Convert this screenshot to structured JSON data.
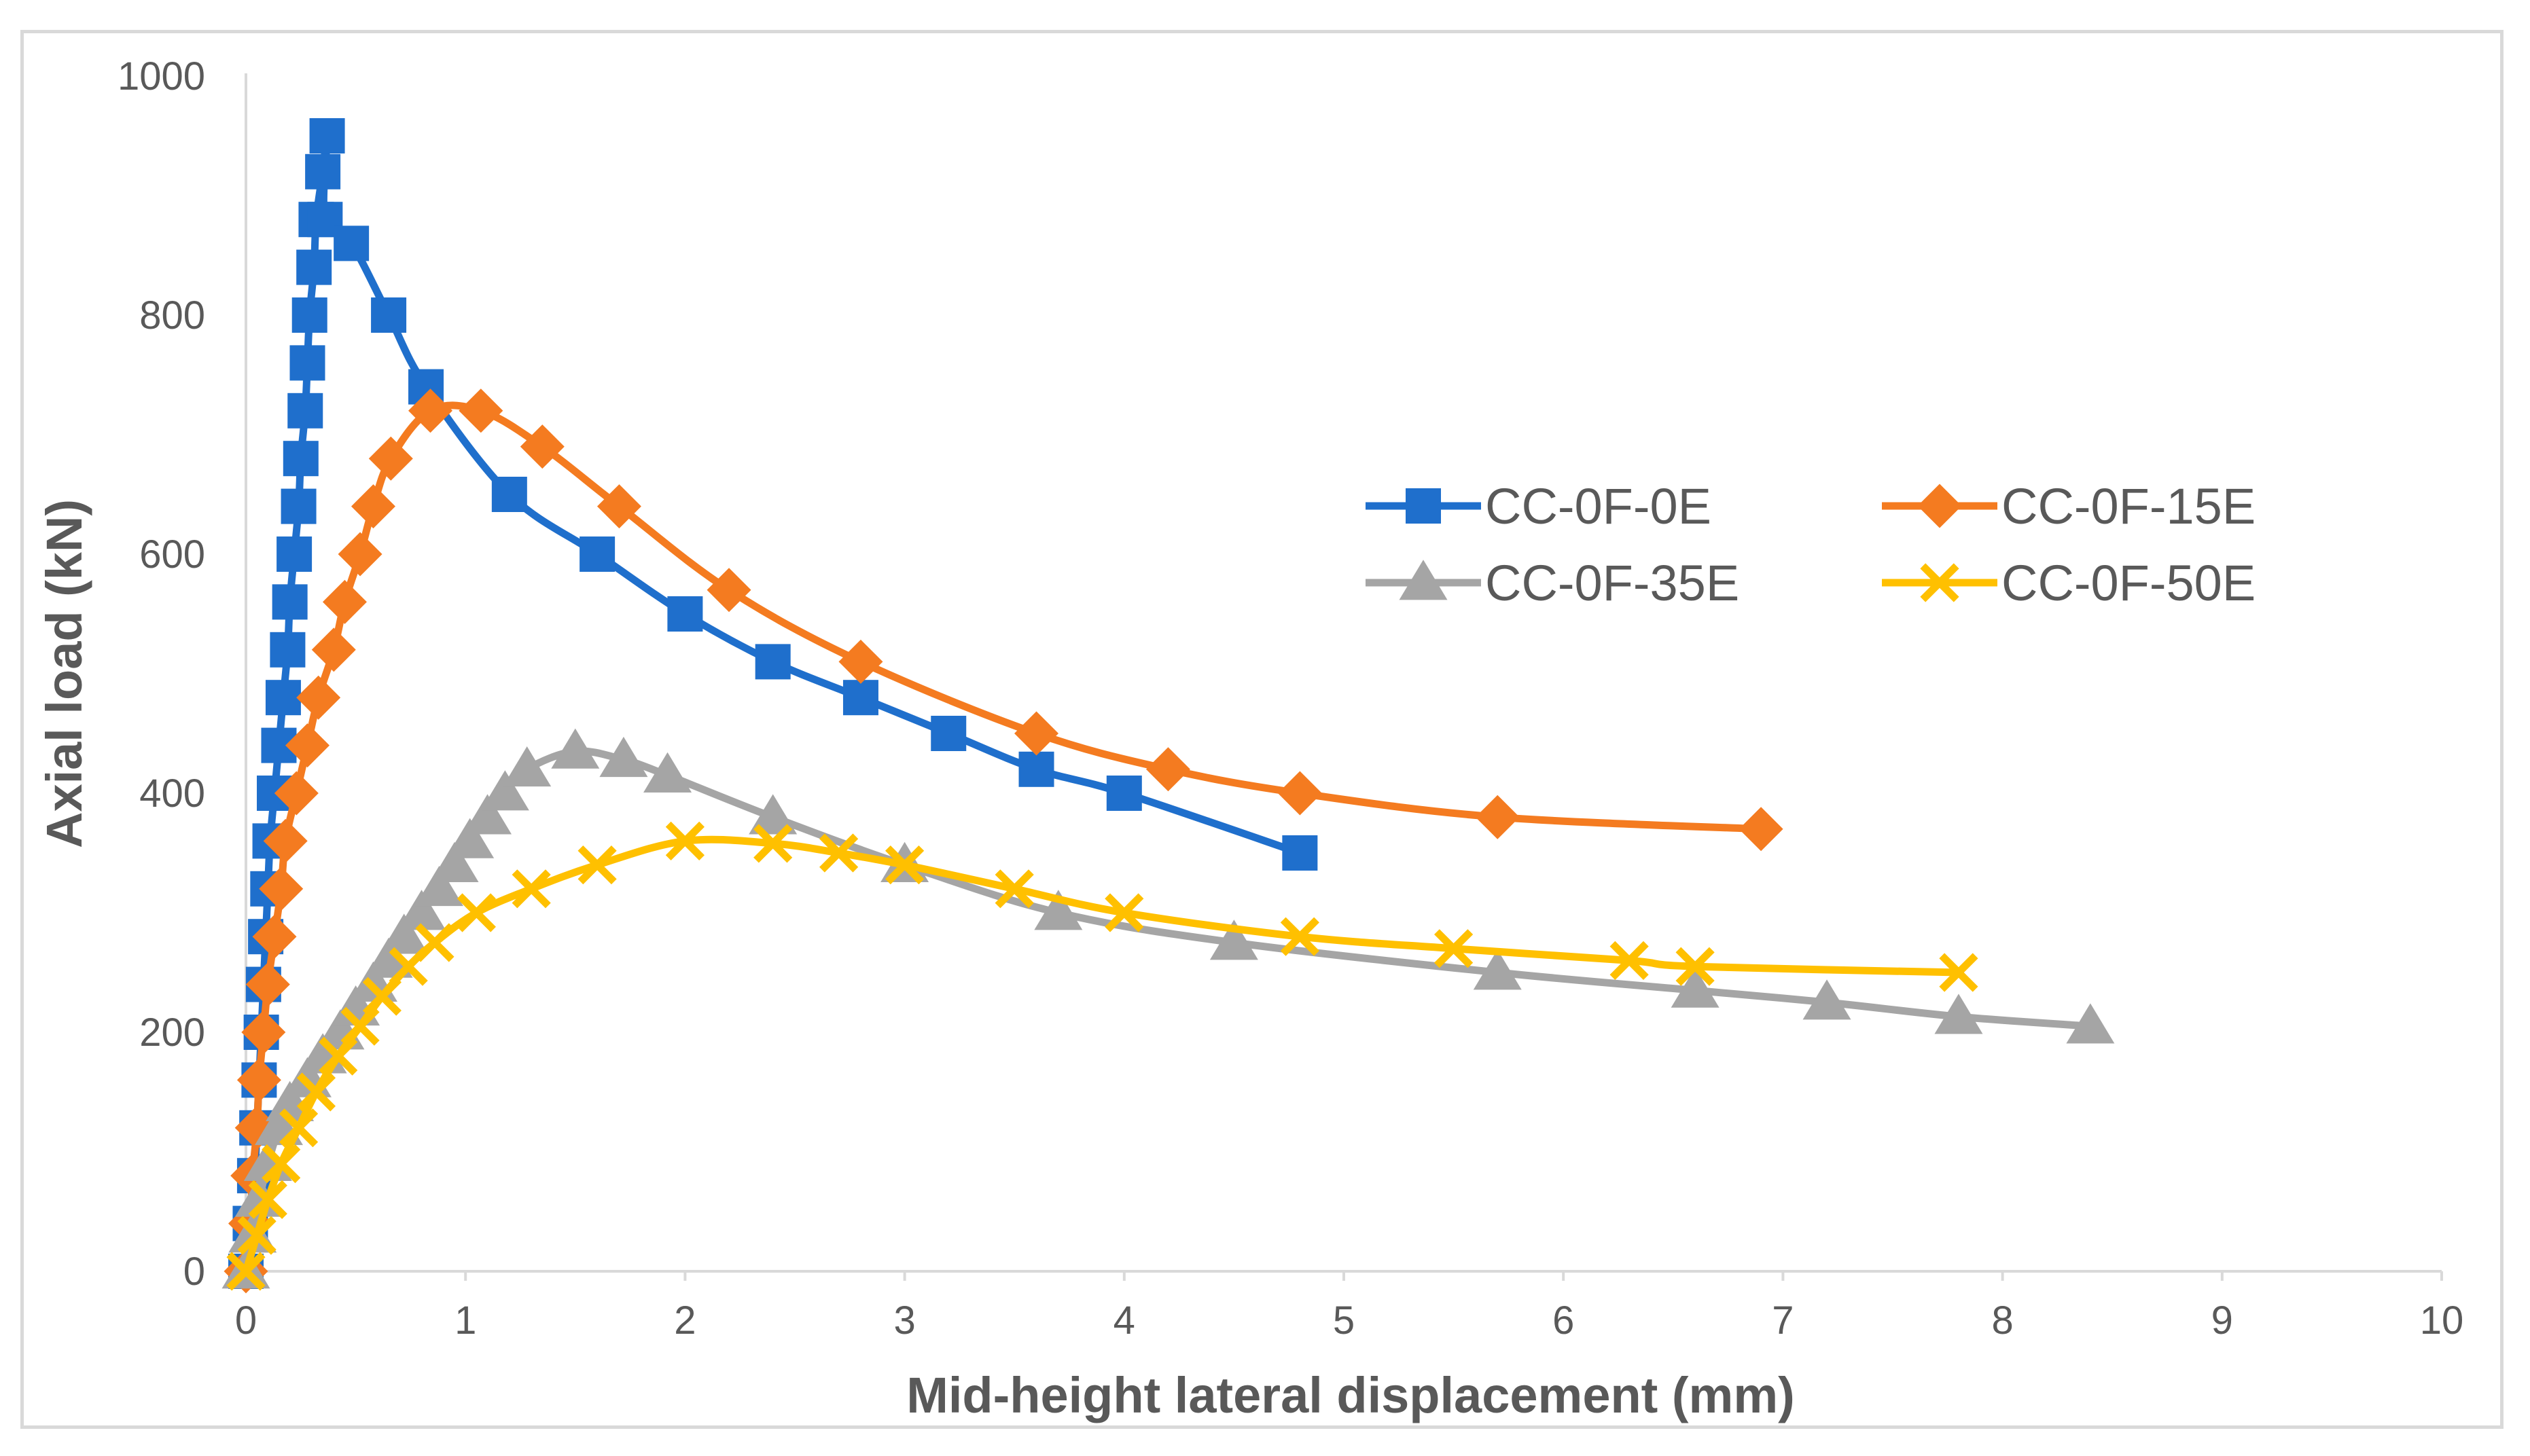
{
  "chart_data": {
    "type": "scatter",
    "title": "",
    "xlabel": "Mid-height lateral displacement (mm)",
    "ylabel": "Axial load (kN)",
    "xlim": [
      0,
      10
    ],
    "ylim": [
      0,
      1000
    ],
    "xticks": [
      "0",
      "1",
      "2",
      "3",
      "4",
      "5",
      "6",
      "7",
      "8",
      "9",
      "10"
    ],
    "yticks": [
      "0",
      "200",
      "400",
      "600",
      "800",
      "1000"
    ],
    "grid": false,
    "legend_position": "right-center",
    "series": [
      {
        "name": "CC-0F-0E",
        "color": "#1f6fcc",
        "marker": "square",
        "points": [
          [
            0,
            0
          ],
          [
            0.02,
            40
          ],
          [
            0.04,
            80
          ],
          [
            0.05,
            120
          ],
          [
            0.06,
            160
          ],
          [
            0.07,
            200
          ],
          [
            0.08,
            240
          ],
          [
            0.09,
            280
          ],
          [
            0.1,
            320
          ],
          [
            0.11,
            360
          ],
          [
            0.13,
            400
          ],
          [
            0.15,
            440
          ],
          [
            0.17,
            480
          ],
          [
            0.19,
            520
          ],
          [
            0.2,
            560
          ],
          [
            0.22,
            600
          ],
          [
            0.24,
            640
          ],
          [
            0.25,
            680
          ],
          [
            0.27,
            720
          ],
          [
            0.28,
            760
          ],
          [
            0.29,
            800
          ],
          [
            0.31,
            840
          ],
          [
            0.32,
            880
          ],
          [
            0.35,
            920
          ],
          [
            0.37,
            950
          ],
          [
            0.36,
            880
          ],
          [
            0.48,
            860
          ],
          [
            0.65,
            800
          ],
          [
            0.82,
            740
          ],
          [
            1.2,
            650
          ],
          [
            1.6,
            600
          ],
          [
            2.0,
            550
          ],
          [
            2.4,
            510
          ],
          [
            2.8,
            480
          ],
          [
            3.2,
            450
          ],
          [
            3.6,
            420
          ],
          [
            4.0,
            400
          ],
          [
            4.8,
            350
          ]
        ]
      },
      {
        "name": "CC-0F-15E",
        "color": "#f47b20",
        "marker": "diamond",
        "points": [
          [
            0,
            0
          ],
          [
            0.02,
            40
          ],
          [
            0.03,
            80
          ],
          [
            0.05,
            120
          ],
          [
            0.06,
            160
          ],
          [
            0.08,
            200
          ],
          [
            0.1,
            240
          ],
          [
            0.13,
            280
          ],
          [
            0.16,
            320
          ],
          [
            0.18,
            360
          ],
          [
            0.23,
            400
          ],
          [
            0.28,
            440
          ],
          [
            0.33,
            480
          ],
          [
            0.4,
            520
          ],
          [
            0.45,
            560
          ],
          [
            0.52,
            600
          ],
          [
            0.58,
            640
          ],
          [
            0.66,
            680
          ],
          [
            0.84,
            720
          ],
          [
            1.07,
            720
          ],
          [
            1.35,
            690
          ],
          [
            1.7,
            640
          ],
          [
            2.2,
            570
          ],
          [
            2.8,
            510
          ],
          [
            3.6,
            450
          ],
          [
            4.2,
            420
          ],
          [
            4.8,
            400
          ],
          [
            5.7,
            380
          ],
          [
            6.9,
            370
          ]
        ]
      },
      {
        "name": "CC-0F-35E",
        "color": "#a5a5a5",
        "marker": "triangle",
        "points": [
          [
            0,
            0
          ],
          [
            0.03,
            30
          ],
          [
            0.06,
            60
          ],
          [
            0.1,
            90
          ],
          [
            0.15,
            120
          ],
          [
            0.2,
            140
          ],
          [
            0.28,
            160
          ],
          [
            0.35,
            180
          ],
          [
            0.43,
            200
          ],
          [
            0.5,
            220
          ],
          [
            0.58,
            240
          ],
          [
            0.65,
            260
          ],
          [
            0.72,
            280
          ],
          [
            0.8,
            300
          ],
          [
            0.88,
            320
          ],
          [
            0.95,
            340
          ],
          [
            1.02,
            360
          ],
          [
            1.1,
            380
          ],
          [
            1.18,
            400
          ],
          [
            1.28,
            420
          ],
          [
            1.5,
            435
          ],
          [
            1.72,
            428
          ],
          [
            1.92,
            415
          ],
          [
            2.4,
            380
          ],
          [
            3.0,
            340
          ],
          [
            3.7,
            300
          ],
          [
            4.5,
            275
          ],
          [
            5.7,
            250
          ],
          [
            6.6,
            235
          ],
          [
            7.2,
            225
          ],
          [
            7.8,
            213
          ],
          [
            8.4,
            205
          ]
        ]
      },
      {
        "name": "CC-0F-50E",
        "color": "#ffc000",
        "marker": "x",
        "points": [
          [
            0,
            0
          ],
          [
            0.05,
            30
          ],
          [
            0.1,
            60
          ],
          [
            0.16,
            90
          ],
          [
            0.24,
            120
          ],
          [
            0.32,
            150
          ],
          [
            0.42,
            180
          ],
          [
            0.52,
            205
          ],
          [
            0.62,
            230
          ],
          [
            0.74,
            255
          ],
          [
            0.86,
            275
          ],
          [
            1.05,
            300
          ],
          [
            1.3,
            320
          ],
          [
            1.6,
            340
          ],
          [
            2.0,
            360
          ],
          [
            2.4,
            358
          ],
          [
            2.7,
            350
          ],
          [
            3.0,
            340
          ],
          [
            3.5,
            320
          ],
          [
            4.0,
            300
          ],
          [
            4.8,
            280
          ],
          [
            5.5,
            270
          ],
          [
            6.3,
            260
          ],
          [
            6.6,
            255
          ],
          [
            7.8,
            250
          ]
        ]
      }
    ]
  }
}
